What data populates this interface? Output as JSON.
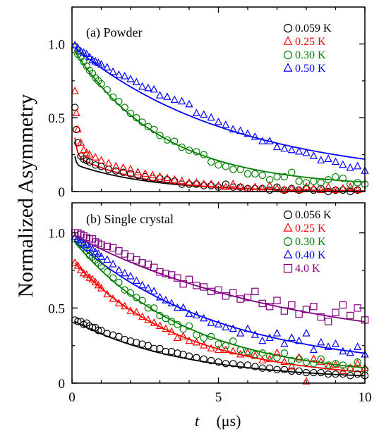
{
  "figure": {
    "ylabel": "Normalized Asymmetry",
    "xlabel_var": "t",
    "xlabel_unit": "(μs)",
    "x_ticks": [
      "0",
      "5",
      "10"
    ]
  },
  "chart_data": [
    {
      "type": "scatter",
      "title": "(a) Powder",
      "xlabel": "t (μs)",
      "ylabel": "Normalized Asymmetry",
      "xlim": [
        0,
        10
      ],
      "ylim": [
        0,
        1.25
      ],
      "y_ticks": [
        "0",
        "0.5",
        "1.0"
      ],
      "legend_position": "top-right",
      "series": [
        {
          "name": "0.059 K",
          "color": "#000000",
          "marker": "circle",
          "fit": {
            "a1": 0.42,
            "t1": 0.05,
            "a2": 0.19,
            "t2": 2.6,
            "b": 0.0
          },
          "x": [
            0.1,
            0.15,
            0.2,
            0.3,
            0.4,
            0.5,
            0.6,
            0.8,
            1.0,
            1.25,
            1.5,
            1.75,
            2.0,
            2.25,
            2.5,
            2.75,
            3.0,
            3.25,
            3.5,
            3.75,
            4.0,
            4.25,
            4.5,
            4.75,
            5.0,
            5.25,
            5.5,
            5.75,
            6.0,
            6.25,
            6.5,
            6.75,
            7.0,
            7.25,
            7.5,
            7.75,
            8.0,
            8.25,
            8.5,
            8.75,
            9.0,
            9.25,
            9.5,
            9.75
          ],
          "y": [
            0.57,
            0.42,
            0.33,
            0.24,
            0.22,
            0.21,
            0.2,
            0.18,
            0.17,
            0.15,
            0.14,
            0.13,
            0.12,
            0.11,
            0.1,
            0.09,
            0.09,
            0.08,
            0.07,
            0.05,
            0.05,
            0.05,
            0.04,
            0.04,
            0.03,
            0.05,
            0.03,
            0.03,
            0.02,
            0.02,
            0.02,
            0.01,
            0.03,
            0.01,
            0.02,
            0.01,
            0.02,
            0.01,
            0.02,
            0.0,
            0.01,
            0.01,
            0.0,
            0.01
          ]
        },
        {
          "name": "0.25 K",
          "color": "#ff0000",
          "marker": "triangle",
          "fit": {
            "a1": 0.44,
            "t1": 0.08,
            "a2": 0.25,
            "t2": 2.3,
            "b": 0.0
          },
          "x": [
            0.1,
            0.15,
            0.2,
            0.3,
            0.4,
            0.5,
            0.6,
            0.8,
            1.0,
            1.25,
            1.5,
            1.75,
            2.0,
            2.25,
            2.5,
            2.75,
            3.0,
            3.25,
            3.5,
            3.75,
            4.0,
            4.25,
            4.5,
            4.75,
            5.0,
            5.25,
            5.5,
            5.75,
            6.0,
            6.25,
            6.5,
            6.75,
            7.0,
            7.25,
            7.5,
            7.75,
            8.0,
            8.25,
            8.5,
            8.75,
            9.0,
            9.25,
            9.5,
            9.75
          ],
          "y": [
            0.68,
            0.53,
            0.42,
            0.33,
            0.28,
            0.26,
            0.25,
            0.23,
            0.21,
            0.19,
            0.17,
            0.16,
            0.15,
            0.13,
            0.12,
            0.11,
            0.1,
            0.09,
            0.08,
            0.07,
            0.06,
            0.06,
            0.05,
            0.05,
            0.04,
            0.03,
            0.05,
            0.03,
            0.02,
            0.03,
            0.02,
            0.04,
            0.02,
            0.01,
            0.02,
            0.01,
            0.03,
            0.02,
            0.01,
            0.03,
            0.01,
            0.02,
            0.03,
            0.01
          ]
        },
        {
          "name": "0.30 K",
          "color": "#008000",
          "marker": "circle",
          "fit": {
            "a1": 0.0,
            "t1": 1.0,
            "a2": 0.95,
            "t2": 3.0,
            "b": 0.03
          },
          "x": [
            0.1,
            0.2,
            0.3,
            0.4,
            0.5,
            0.6,
            0.7,
            0.8,
            0.9,
            1.0,
            1.2,
            1.4,
            1.6,
            1.8,
            2.0,
            2.2,
            2.4,
            2.6,
            2.8,
            3.0,
            3.25,
            3.5,
            3.75,
            4.0,
            4.25,
            4.5,
            4.75,
            5.0,
            5.25,
            5.5,
            5.75,
            6.0,
            6.25,
            6.5,
            6.75,
            7.0,
            7.25,
            7.5,
            7.75,
            8.0,
            8.25,
            8.5,
            8.75,
            9.0,
            9.25,
            9.5,
            9.75,
            10.0
          ],
          "y": [
            0.96,
            0.93,
            0.91,
            0.88,
            0.85,
            0.82,
            0.8,
            0.77,
            0.75,
            0.73,
            0.69,
            0.64,
            0.61,
            0.57,
            0.53,
            0.5,
            0.47,
            0.44,
            0.42,
            0.38,
            0.35,
            0.34,
            0.3,
            0.28,
            0.27,
            0.25,
            0.2,
            0.18,
            0.17,
            0.15,
            0.15,
            0.12,
            0.12,
            0.11,
            0.08,
            0.1,
            0.1,
            0.13,
            0.07,
            0.06,
            0.07,
            0.06,
            0.08,
            0.1,
            0.09,
            0.05,
            0.06,
            0.05
          ]
        },
        {
          "name": "0.50 K",
          "color": "#0000ff",
          "marker": "triangle",
          "fit": {
            "a1": 0.0,
            "t1": 1.0,
            "a2": 0.92,
            "t2": 5.5,
            "b": 0.07
          },
          "x": [
            0.1,
            0.2,
            0.3,
            0.4,
            0.5,
            0.6,
            0.7,
            0.8,
            0.9,
            1.0,
            1.2,
            1.4,
            1.6,
            1.8,
            2.0,
            2.2,
            2.4,
            2.6,
            2.8,
            3.0,
            3.25,
            3.5,
            3.75,
            4.0,
            4.25,
            4.5,
            4.75,
            5.0,
            5.25,
            5.5,
            5.75,
            6.0,
            6.25,
            6.5,
            6.75,
            7.0,
            7.25,
            7.5,
            7.75,
            8.0,
            8.25,
            8.5,
            8.75,
            9.0,
            9.25,
            9.5,
            9.75,
            10.0
          ],
          "y": [
            0.99,
            0.97,
            0.95,
            0.94,
            0.93,
            0.91,
            0.89,
            0.88,
            0.87,
            0.86,
            0.84,
            0.81,
            0.79,
            0.78,
            0.76,
            0.74,
            0.71,
            0.7,
            0.69,
            0.65,
            0.64,
            0.62,
            0.61,
            0.59,
            0.53,
            0.52,
            0.5,
            0.47,
            0.45,
            0.42,
            0.41,
            0.39,
            0.37,
            0.34,
            0.34,
            0.3,
            0.29,
            0.28,
            0.27,
            0.26,
            0.24,
            0.21,
            0.22,
            0.2,
            0.18,
            0.16,
            0.17,
            0.14
          ]
        }
      ]
    },
    {
      "type": "scatter",
      "title": "(b) Single crystal",
      "xlabel": "t (μs)",
      "ylabel": "Normalized Asymmetry",
      "xlim": [
        0,
        10
      ],
      "ylim": [
        0,
        1.2
      ],
      "y_ticks": [
        "0",
        "0.5",
        "1.0"
      ],
      "legend_position": "top-right",
      "series": [
        {
          "name": "0.056 K",
          "color": "#000000",
          "marker": "circle",
          "fit": {
            "a": 0.4,
            "tau": 3.8,
            "b": 0.02
          },
          "x": [
            0.1,
            0.2,
            0.3,
            0.4,
            0.5,
            0.6,
            0.7,
            0.8,
            0.9,
            1.0,
            1.2,
            1.4,
            1.6,
            1.8,
            2.0,
            2.2,
            2.4,
            2.6,
            2.8,
            3.0,
            3.2,
            3.4,
            3.6,
            3.8,
            4.0,
            4.25,
            4.5,
            4.75,
            5.0,
            5.25,
            5.5,
            5.75,
            6.0,
            6.25,
            6.5,
            6.75,
            7.0,
            7.25,
            7.5,
            7.75,
            8.0,
            8.25,
            8.5,
            8.75,
            9.0,
            9.25,
            9.5,
            9.75,
            10.0
          ],
          "y": [
            0.42,
            0.41,
            0.41,
            0.39,
            0.4,
            0.38,
            0.37,
            0.37,
            0.35,
            0.35,
            0.33,
            0.32,
            0.31,
            0.29,
            0.28,
            0.27,
            0.26,
            0.25,
            0.23,
            0.23,
            0.21,
            0.21,
            0.2,
            0.19,
            0.18,
            0.17,
            0.16,
            0.15,
            0.14,
            0.13,
            0.13,
            0.12,
            0.12,
            0.11,
            0.1,
            0.1,
            0.09,
            0.09,
            0.08,
            0.08,
            0.07,
            0.07,
            0.07,
            0.06,
            0.06,
            0.06,
            0.05,
            0.06,
            0.05
          ]
        },
        {
          "name": "0.25 K",
          "color": "#ff0000",
          "marker": "triangle",
          "fit": {
            "a": 0.8,
            "tau": 3.7,
            "b": 0.02
          },
          "x": [
            0.1,
            0.2,
            0.3,
            0.4,
            0.5,
            0.6,
            0.7,
            0.8,
            0.9,
            1.0,
            1.2,
            1.4,
            1.6,
            1.8,
            2.0,
            2.2,
            2.4,
            2.6,
            2.8,
            3.0,
            3.2,
            3.4,
            3.6,
            3.8,
            4.0,
            4.25,
            4.5,
            4.75,
            5.0,
            5.25,
            5.5,
            5.75,
            6.0,
            6.25,
            6.5,
            6.75,
            7.0,
            7.25,
            7.5,
            7.75,
            8.0,
            8.25,
            8.5,
            8.75,
            9.0,
            9.25,
            9.5,
            9.75,
            10.0
          ],
          "y": [
            0.8,
            0.78,
            0.75,
            0.73,
            0.72,
            0.7,
            0.69,
            0.67,
            0.65,
            0.63,
            0.59,
            0.56,
            0.53,
            0.51,
            0.48,
            0.47,
            0.44,
            0.42,
            0.4,
            0.38,
            0.36,
            0.34,
            0.3,
            0.31,
            0.28,
            0.27,
            0.25,
            0.23,
            0.22,
            0.22,
            0.21,
            0.19,
            0.2,
            0.18,
            0.15,
            0.16,
            0.2,
            0.14,
            0.11,
            0.17,
            0.01,
            0.16,
            0.14,
            0.11,
            0.12,
            0.08,
            0.1,
            0.13,
            0.1
          ]
        },
        {
          "name": "0.30 K",
          "color": "#008000",
          "marker": "circle",
          "fit": {
            "a": 0.93,
            "tau": 3.9,
            "b": 0.03
          },
          "x": [
            0.1,
            0.2,
            0.3,
            0.4,
            0.5,
            0.6,
            0.7,
            0.8,
            0.9,
            1.0,
            1.2,
            1.4,
            1.6,
            1.8,
            2.0,
            2.2,
            2.4,
            2.6,
            2.8,
            3.0,
            3.2,
            3.4,
            3.6,
            3.8,
            4.0,
            4.25,
            4.5,
            4.75,
            5.0,
            5.25,
            5.5,
            5.75,
            6.0,
            6.25,
            6.5,
            6.75,
            7.0,
            7.25,
            7.5,
            7.75,
            8.0,
            8.25,
            8.5,
            8.75,
            9.0,
            9.25,
            9.5,
            9.75,
            10.0
          ],
          "y": [
            0.96,
            0.95,
            0.93,
            0.9,
            0.88,
            0.85,
            0.84,
            0.82,
            0.8,
            0.78,
            0.74,
            0.7,
            0.67,
            0.62,
            0.6,
            0.57,
            0.55,
            0.5,
            0.5,
            0.45,
            0.43,
            0.41,
            0.39,
            0.36,
            0.38,
            0.32,
            0.3,
            0.31,
            0.26,
            0.25,
            0.28,
            0.22,
            0.21,
            0.19,
            0.2,
            0.18,
            0.17,
            0.2,
            0.15,
            0.16,
            0.14,
            0.13,
            0.16,
            0.12,
            0.13,
            0.12,
            0.1,
            0.14,
            0.09
          ]
        },
        {
          "name": "0.40 K",
          "color": "#0000ff",
          "marker": "triangle",
          "fit": {
            "a": 0.88,
            "tau": 5.0,
            "b": 0.08
          },
          "x": [
            0.1,
            0.2,
            0.3,
            0.4,
            0.5,
            0.6,
            0.7,
            0.8,
            0.9,
            1.0,
            1.2,
            1.4,
            1.6,
            1.8,
            2.0,
            2.2,
            2.4,
            2.6,
            2.8,
            3.0,
            3.2,
            3.4,
            3.6,
            3.8,
            4.0,
            4.25,
            4.5,
            4.75,
            5.0,
            5.25,
            5.5,
            5.75,
            6.0,
            6.25,
            6.5,
            6.75,
            7.0,
            7.25,
            7.5,
            7.75,
            8.0,
            8.25,
            8.5,
            8.75,
            9.0,
            9.25,
            9.5,
            9.75,
            10.0
          ],
          "y": [
            0.97,
            0.96,
            0.95,
            0.93,
            0.92,
            0.9,
            0.89,
            0.87,
            0.86,
            0.84,
            0.82,
            0.79,
            0.75,
            0.73,
            0.71,
            0.68,
            0.65,
            0.63,
            0.61,
            0.57,
            0.55,
            0.53,
            0.5,
            0.5,
            0.46,
            0.45,
            0.43,
            0.4,
            0.39,
            0.37,
            0.36,
            0.33,
            0.36,
            0.32,
            0.28,
            0.3,
            0.33,
            0.26,
            0.3,
            0.28,
            0.33,
            0.22,
            0.27,
            0.24,
            0.26,
            0.21,
            0.2,
            0.24,
            0.19
          ]
        },
        {
          "name": "4.0 K",
          "color": "#800080",
          "marker": "square",
          "fit": {
            "a": 0.79,
            "tau": 7.5,
            "b": 0.2
          },
          "x": [
            0.1,
            0.2,
            0.3,
            0.4,
            0.5,
            0.6,
            0.7,
            0.8,
            0.9,
            1.0,
            1.2,
            1.4,
            1.6,
            1.8,
            2.0,
            2.2,
            2.4,
            2.6,
            2.8,
            3.0,
            3.2,
            3.4,
            3.6,
            3.8,
            4.0,
            4.25,
            4.5,
            4.75,
            5.0,
            5.25,
            5.5,
            5.75,
            6.0,
            6.25,
            6.5,
            6.75,
            7.0,
            7.25,
            7.5,
            7.75,
            8.0,
            8.25,
            8.5,
            8.75,
            9.0,
            9.25,
            9.5,
            9.75,
            10.0
          ],
          "y": [
            1.0,
            1.0,
            0.99,
            0.98,
            0.97,
            0.96,
            0.96,
            0.94,
            0.93,
            0.92,
            0.91,
            0.9,
            0.88,
            0.86,
            0.84,
            0.82,
            0.8,
            0.79,
            0.77,
            0.74,
            0.73,
            0.72,
            0.7,
            0.66,
            0.69,
            0.65,
            0.64,
            0.61,
            0.62,
            0.58,
            0.6,
            0.56,
            0.57,
            0.61,
            0.53,
            0.51,
            0.55,
            0.48,
            0.52,
            0.46,
            0.49,
            0.51,
            0.44,
            0.41,
            0.47,
            0.52,
            0.45,
            0.5,
            0.42
          ]
        }
      ]
    }
  ]
}
